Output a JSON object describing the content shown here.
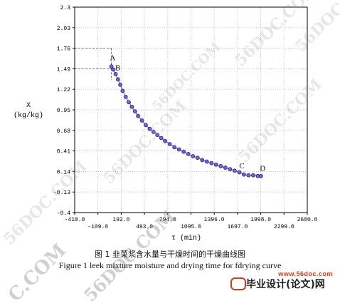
{
  "chart_data": {
    "type": "scatter",
    "ylabel": "X",
    "ylabel_unit": "(kg/kg)",
    "xlabel": "τ (min)",
    "xlim": [
      -410.0,
      2600.0
    ],
    "ylim": [
      -0.4,
      2.3
    ],
    "x_ticks_upper": [
      "-410.0",
      "192.0",
      "794.0",
      "1396.0",
      "1998.0",
      "2600.0"
    ],
    "x_ticks_lower": [
      "-109.0",
      "493.0",
      "1095.0",
      "1697.0",
      "2299.0"
    ],
    "y_ticks": [
      "2.3",
      "2.03",
      "1.76",
      "1.49",
      "1.22",
      "0.95",
      "0.68",
      "0.41",
      "0.14",
      "-0.13",
      "-0.4"
    ],
    "x_tick_values": [
      -410.0,
      -109.0,
      192.0,
      493.0,
      794.0,
      1095.0,
      1396.0,
      1697.0,
      1998.0,
      2299.0,
      2600.0
    ],
    "y_tick_values": [
      2.3,
      2.03,
      1.76,
      1.49,
      1.22,
      0.95,
      0.68,
      0.41,
      0.14,
      -0.13,
      -0.4
    ],
    "grid": true,
    "series": [
      {
        "x": [
          65,
          90,
          120,
          150,
          180,
          210,
          250,
          290,
          330,
          370,
          410,
          460,
          510,
          560,
          610,
          660,
          710,
          760,
          820,
          880,
          940,
          1000,
          1060,
          1120,
          1180,
          1240,
          1300,
          1360,
          1420,
          1480,
          1540,
          1600,
          1660,
          1720,
          1780,
          1840,
          1900,
          1960,
          2000
        ],
        "y": [
          1.52,
          1.48,
          1.42,
          1.35,
          1.28,
          1.2,
          1.12,
          1.05,
          0.99,
          0.93,
          0.87,
          0.81,
          0.75,
          0.7,
          0.66,
          0.62,
          0.58,
          0.54,
          0.5,
          0.46,
          0.43,
          0.4,
          0.37,
          0.34,
          0.32,
          0.29,
          0.27,
          0.25,
          0.23,
          0.21,
          0.19,
          0.17,
          0.15,
          0.13,
          0.1,
          0.09,
          0.09,
          0.08,
          0.08
        ]
      }
    ],
    "annotations": [
      {
        "text": "A",
        "x": 45,
        "y": 1.6
      },
      {
        "text": "B",
        "x": 115,
        "y": 1.47
      },
      {
        "text": "C",
        "x": 1720,
        "y": 0.18
      },
      {
        "text": "D",
        "x": 1985,
        "y": 0.15
      }
    ],
    "dashed_guides": [
      {
        "from": [
          -410,
          1.76
        ],
        "to": [
          65,
          1.76
        ]
      },
      {
        "from": [
          65,
          1.76
        ],
        "to": [
          65,
          1.52
        ]
      },
      {
        "from": [
          -410,
          1.49
        ],
        "to": [
          65,
          1.49
        ]
      },
      {
        "from": [
          65,
          1.49
        ],
        "to": [
          65,
          1.34
        ]
      }
    ],
    "colors": {
      "marker": "#2d2aa0",
      "marker_fill": "#6f6cd8",
      "line": "#d23333",
      "grid": "#aaaaaa",
      "axis": "#000000"
    }
  },
  "caption_cn": "图 1    韭菜浆含水量与干燥时间的干燥曲线图",
  "caption_en": "Figure 1    leek mixture moisture and drying time for fdrying curve",
  "watermarks": [
    "56DOC.COM",
    "56DOC.COM",
    "56DOC.COM",
    "56DOC.COM",
    "56DOC.COM",
    "56DOC.COM"
  ],
  "bottom_watermarks": [
    "C.COM",
    "56DOC.COM"
  ],
  "brand": {
    "url": "www.56doc.com",
    "text": "毕业设计(论文)网"
  }
}
